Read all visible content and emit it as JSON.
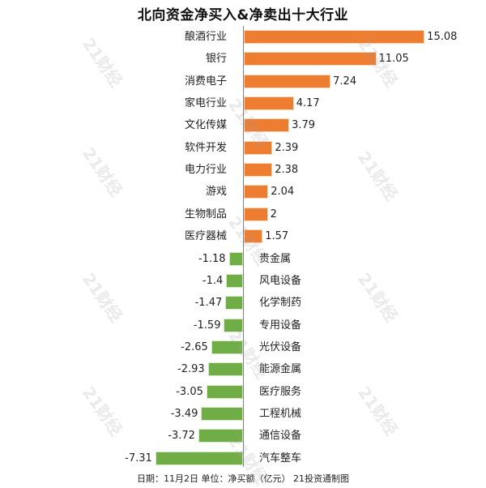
{
  "chart_data": {
    "type": "bar",
    "orientation": "horizontal",
    "title": "北向资金净买入&净卖出十大行业",
    "xlabel": "",
    "ylabel": "",
    "unit": "净买额（亿元）",
    "categories": [
      "酿酒行业",
      "银行",
      "消费电子",
      "家电行业",
      "文化传媒",
      "软件开发",
      "电力行业",
      "游戏",
      "生物制品",
      "医疗器械",
      "贵金属",
      "风电设备",
      "化学制药",
      "专用设备",
      "光伏设备",
      "能源金属",
      "医疗服务",
      "工程机械",
      "通信设备",
      "汽车整车"
    ],
    "series": [
      {
        "name": "净买入",
        "color": "#ed7d31",
        "values": [
          15.08,
          11.05,
          7.24,
          4.17,
          3.79,
          2.39,
          2.38,
          2.04,
          2,
          1.57
        ]
      },
      {
        "name": "净卖出",
        "color": "#70ad47",
        "values": [
          -1.18,
          -1.4,
          -1.47,
          -1.59,
          -2.65,
          -2.93,
          -3.05,
          -3.49,
          -3.72,
          -7.31
        ]
      }
    ],
    "values": [
      15.08,
      11.05,
      7.24,
      4.17,
      3.79,
      2.39,
      2.38,
      2.04,
      2,
      1.57,
      -1.18,
      -1.4,
      -1.47,
      -1.59,
      -2.65,
      -2.93,
      -3.05,
      -3.49,
      -3.72,
      -7.31
    ],
    "value_labels": [
      "15.08",
      "11.05",
      "7.24",
      "4.17",
      "3.79",
      "2.39",
      "2.38",
      "2.04",
      "2",
      "1.57",
      "-1.18",
      "-1.4",
      "-1.47",
      "-1.59",
      "-2.65",
      "-2.93",
      "-3.05",
      "-3.49",
      "-3.72",
      "-7.31"
    ],
    "grid": false,
    "legend": "none",
    "xlim": [
      -7.5,
      15.5
    ]
  },
  "footer": "日期：11月2日 单位：净买额（亿元） 21投资通制图",
  "watermark": "21财经",
  "colors": {
    "positive": "#ed7d31",
    "negative": "#70ad47",
    "axis": "#808080"
  }
}
